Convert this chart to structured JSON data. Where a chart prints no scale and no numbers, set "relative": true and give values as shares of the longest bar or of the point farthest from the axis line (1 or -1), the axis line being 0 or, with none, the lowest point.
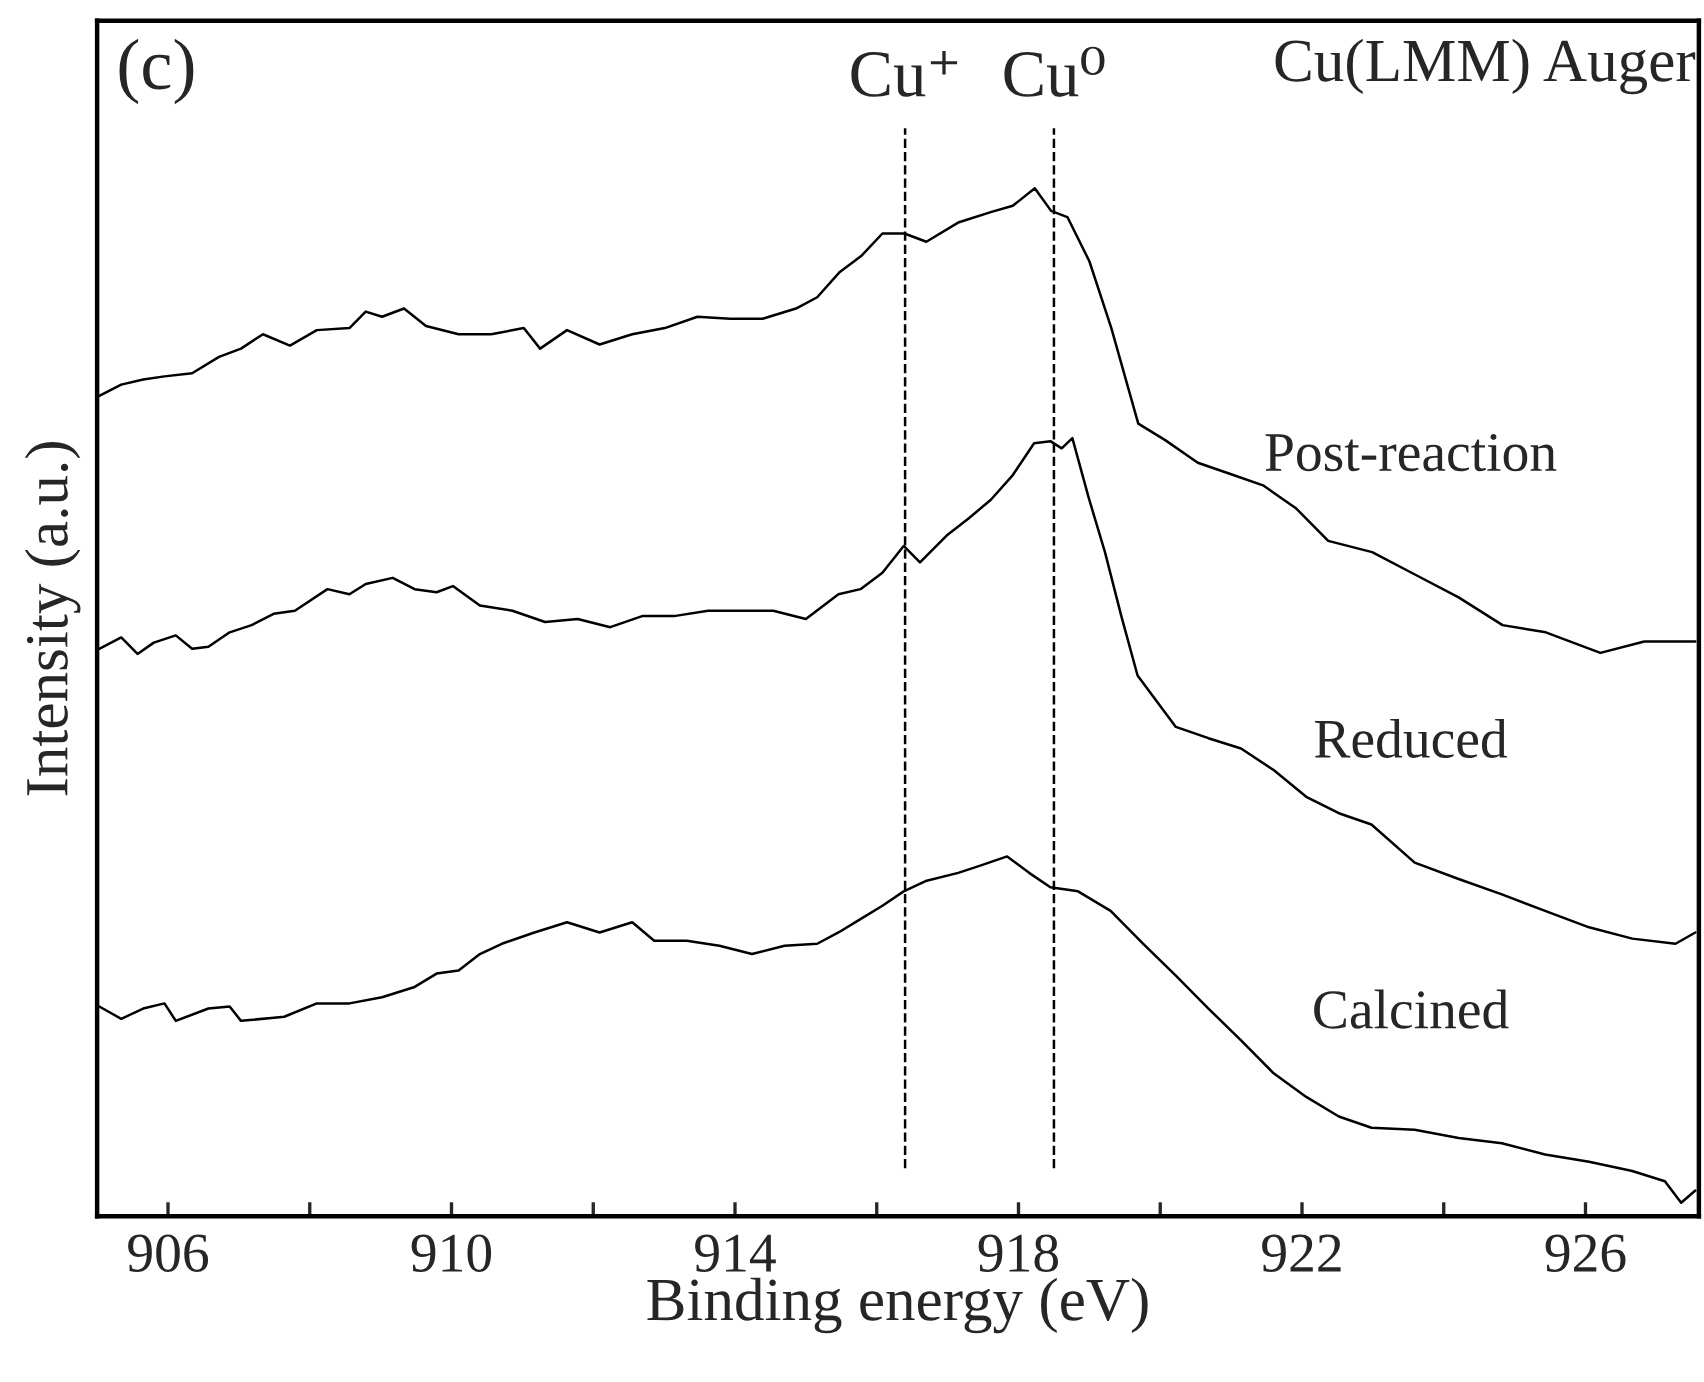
{
  "chart_data": {
    "type": "line",
    "relative": true,
    "xlabel": "Binding energy (eV)",
    "ylabel": "Intensity (a.u.)",
    "annotations": [
      "(c)",
      "Cu(LMM) Auger"
    ],
    "xlim": [
      905,
      927.6
    ],
    "xticks": [
      906,
      {
        "value": 908,
        "label": null
      },
      910,
      {
        "value": 912,
        "label": null
      },
      914,
      {
        "value": 916,
        "label": null
      },
      918,
      {
        "value": 920,
        "label": null
      },
      922,
      {
        "value": 924,
        "label": null
      },
      926
    ],
    "tick_labels": "x",
    "grid": false,
    "legend": false,
    "marker": "none",
    "line_style": "solid",
    "ref_lines": [
      {
        "axis": "x",
        "value": 916.4,
        "label": "Cu⁺",
        "color": "#000000",
        "line_style": "dashed"
      },
      {
        "axis": "x",
        "value": 918.5,
        "label": "Cu⁰",
        "color": "#000000",
        "line_style": "dashed"
      }
    ],
    "series": [
      {
        "name": "Post-reaction",
        "color": "#000000",
        "x": [
          905.03,
          905.34,
          905.65,
          905.95,
          906.34,
          906.72,
          907.03,
          907.34,
          907.72,
          908.1,
          908.56,
          908.79,
          909.02,
          909.33,
          909.64,
          910.1,
          910.56,
          911.02,
          911.25,
          911.63,
          912.09,
          912.55,
          913.01,
          913.47,
          913.93,
          914.39,
          914.86,
          915.16,
          915.47,
          915.78,
          916.08,
          916.39,
          916.7,
          917.16,
          917.62,
          917.92,
          918.23,
          918.46,
          918.69,
          919.0,
          919.31,
          919.69,
          920.07,
          920.53,
          920.99,
          921.45,
          921.91,
          922.37,
          922.99,
          923.6,
          924.21,
          924.83,
          925.44,
          926.21,
          926.83,
          927.55
        ],
        "values": [
          0.798,
          0.809,
          0.814,
          0.817,
          0.82,
          0.836,
          0.844,
          0.858,
          0.847,
          0.862,
          0.864,
          0.88,
          0.875,
          0.883,
          0.866,
          0.858,
          0.858,
          0.864,
          0.844,
          0.862,
          0.848,
          0.858,
          0.864,
          0.875,
          0.873,
          0.873,
          0.883,
          0.894,
          0.918,
          0.934,
          0.956,
          0.956,
          0.948,
          0.967,
          0.977,
          0.983,
          1.0,
          0.978,
          0.972,
          0.929,
          0.864,
          0.771,
          0.755,
          0.733,
          0.722,
          0.711,
          0.689,
          0.657,
          0.646,
          0.624,
          0.602,
          0.575,
          0.568,
          0.548,
          0.559,
          0.559
        ]
      },
      {
        "name": "Reduced",
        "color": "#000000",
        "x": [
          905.03,
          905.34,
          905.57,
          905.8,
          906.11,
          906.34,
          906.57,
          906.87,
          907.18,
          907.49,
          907.79,
          908.25,
          908.56,
          908.79,
          909.17,
          909.48,
          909.79,
          910.02,
          910.4,
          910.86,
          911.32,
          911.78,
          912.24,
          912.7,
          913.16,
          913.62,
          914.08,
          914.54,
          915.0,
          915.46,
          915.77,
          916.08,
          916.38,
          916.61,
          917.0,
          917.3,
          917.61,
          917.92,
          918.22,
          918.45,
          918.61,
          918.76,
          918.99,
          919.22,
          919.45,
          919.68,
          920.22,
          920.68,
          921.14,
          921.6,
          922.06,
          922.52,
          922.98,
          923.59,
          924.21,
          924.82,
          925.43,
          926.05,
          926.66,
          927.27,
          927.55
        ],
        "values": [
          0.552,
          0.563,
          0.547,
          0.558,
          0.565,
          0.552,
          0.554,
          0.568,
          0.575,
          0.586,
          0.589,
          0.61,
          0.605,
          0.615,
          0.621,
          0.61,
          0.607,
          0.613,
          0.594,
          0.589,
          0.578,
          0.581,
          0.573,
          0.584,
          0.584,
          0.589,
          0.589,
          0.589,
          0.581,
          0.605,
          0.61,
          0.626,
          0.652,
          0.636,
          0.663,
          0.679,
          0.697,
          0.721,
          0.752,
          0.754,
          0.747,
          0.757,
          0.699,
          0.646,
          0.584,
          0.526,
          0.476,
          0.465,
          0.455,
          0.434,
          0.408,
          0.392,
          0.381,
          0.344,
          0.328,
          0.313,
          0.297,
          0.281,
          0.27,
          0.265,
          0.276
        ]
      },
      {
        "name": "Calcined",
        "color": "#000000",
        "x": [
          905.03,
          905.34,
          905.65,
          905.95,
          906.11,
          906.57,
          906.87,
          907.03,
          907.64,
          908.1,
          908.56,
          909.02,
          909.48,
          909.79,
          910.1,
          910.4,
          910.71,
          911.17,
          911.63,
          912.09,
          912.55,
          912.86,
          913.32,
          913.78,
          914.24,
          914.7,
          915.16,
          915.46,
          915.77,
          916.08,
          916.38,
          916.69,
          917.15,
          917.46,
          917.84,
          918.15,
          918.45,
          918.84,
          919.3,
          919.76,
          920.22,
          920.68,
          921.14,
          921.6,
          922.06,
          922.52,
          922.98,
          923.59,
          924.21,
          924.82,
          925.43,
          926.05,
          926.66,
          927.12,
          927.35,
          927.55
        ],
        "values": [
          0.204,
          0.192,
          0.202,
          0.207,
          0.19,
          0.202,
          0.204,
          0.19,
          0.194,
          0.207,
          0.207,
          0.213,
          0.223,
          0.236,
          0.239,
          0.255,
          0.265,
          0.276,
          0.286,
          0.276,
          0.286,
          0.268,
          0.268,
          0.263,
          0.255,
          0.263,
          0.265,
          0.276,
          0.289,
          0.302,
          0.316,
          0.326,
          0.334,
          0.341,
          0.35,
          0.334,
          0.32,
          0.316,
          0.297,
          0.265,
          0.234,
          0.202,
          0.171,
          0.139,
          0.116,
          0.097,
          0.086,
          0.084,
          0.076,
          0.071,
          0.06,
          0.053,
          0.044,
          0.034,
          0.013,
          0.025
        ]
      }
    ]
  }
}
